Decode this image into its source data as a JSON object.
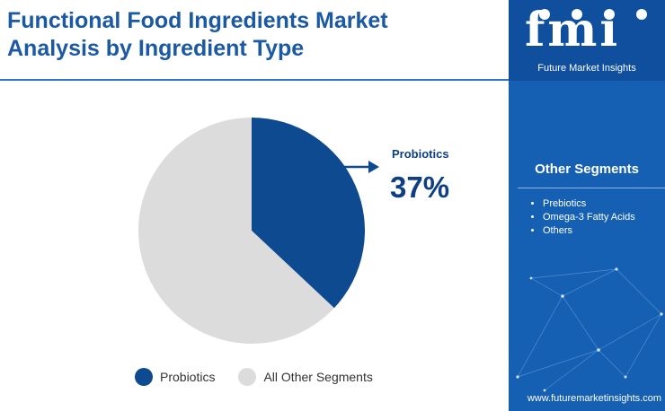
{
  "header": {
    "title_line1": "Functional Food Ingredients Market",
    "title_line2": "Analysis by Ingredient Type"
  },
  "chart_data": {
    "type": "pie",
    "slices": [
      {
        "label": "Probiotics",
        "value": 37,
        "color": "#0e4a8f"
      },
      {
        "label": "All Other Segments",
        "value": 63,
        "color": "#dcdcdc"
      }
    ],
    "callout": {
      "label": "Probiotics",
      "value_text": "37%"
    },
    "legend": [
      "Probiotics",
      "All Other Segments"
    ],
    "legend_position": "bottom"
  },
  "sidebar": {
    "logo_text": "fmi",
    "logo_subtitle": "Future Market Insights",
    "heading": "Other Segments",
    "items": [
      "Prebiotics",
      "Omega-3 Fatty Acids",
      "Others"
    ],
    "website": "www.futuremarketinsights.com"
  },
  "colors": {
    "title": "#1b5aa3",
    "primary": "#0e4a8f",
    "muted": "#dcdcdc",
    "sidebar": "#1660b3"
  }
}
